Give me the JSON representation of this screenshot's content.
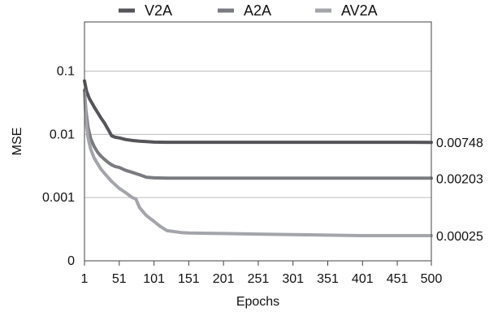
{
  "chart_data": {
    "type": "line",
    "xlabel": "Epochs",
    "ylabel": "MSE",
    "x_ticks": [
      1,
      51,
      101,
      151,
      201,
      251,
      301,
      351,
      401,
      451,
      500
    ],
    "y_ticks": [
      {
        "value": 0.0001,
        "label": "0"
      },
      {
        "value": 0.001,
        "label": "0.001"
      },
      {
        "value": 0.01,
        "label": "0.01"
      },
      {
        "value": 0.1,
        "label": "0.1"
      }
    ],
    "xlim": [
      1,
      500
    ],
    "ylim": [
      0.0001,
      0.6
    ],
    "y_scale": "log",
    "grid": "horizontal",
    "legend_position": "top",
    "series": [
      {
        "name": "V2A",
        "color": "#555559",
        "end_label": "0.00748",
        "x": [
          1,
          4,
          8,
          12,
          16,
          20,
          25,
          30,
          35,
          40,
          45,
          51,
          60,
          70,
          80,
          90,
          101,
          120,
          151,
          200,
          250,
          300,
          350,
          400,
          450,
          500
        ],
        "y": [
          0.07,
          0.048,
          0.037,
          0.031,
          0.026,
          0.022,
          0.018,
          0.015,
          0.012,
          0.0095,
          0.009,
          0.0088,
          0.0083,
          0.008,
          0.0078,
          0.0077,
          0.00755,
          0.0075,
          0.0075,
          0.0075,
          0.0075,
          0.0075,
          0.0075,
          0.0075,
          0.0075,
          0.00748
        ]
      },
      {
        "name": "A2A",
        "color": "#7a7b80",
        "end_label": "0.00203",
        "x": [
          1,
          3,
          6,
          10,
          15,
          20,
          25,
          30,
          35,
          40,
          45,
          51,
          60,
          70,
          80,
          90,
          101,
          120,
          151,
          200,
          250,
          300,
          350,
          400,
          450,
          500
        ],
        "y": [
          0.05,
          0.024,
          0.013,
          0.0085,
          0.0064,
          0.0052,
          0.0045,
          0.004,
          0.0036,
          0.0033,
          0.0031,
          0.003,
          0.0027,
          0.0025,
          0.0023,
          0.0021,
          0.00205,
          0.00203,
          0.00203,
          0.00203,
          0.00203,
          0.00203,
          0.00203,
          0.00203,
          0.00203,
          0.00203
        ]
      },
      {
        "name": "AV2A",
        "color": "#a3a5aa",
        "end_label": "0.00025",
        "x": [
          1,
          3,
          6,
          10,
          15,
          20,
          25,
          30,
          40,
          51,
          60,
          70,
          75,
          80,
          85,
          90,
          101,
          110,
          120,
          140,
          151,
          200,
          250,
          300,
          350,
          400,
          450,
          500
        ],
        "y": [
          0.045,
          0.018,
          0.009,
          0.0058,
          0.0042,
          0.0034,
          0.0028,
          0.0024,
          0.0018,
          0.0014,
          0.0012,
          0.001,
          0.00095,
          0.0007,
          0.0006,
          0.00052,
          0.00042,
          0.00035,
          0.0003,
          0.00028,
          0.000275,
          0.00027,
          0.000265,
          0.00026,
          0.000255,
          0.00025,
          0.00025,
          0.00025
        ]
      }
    ]
  }
}
